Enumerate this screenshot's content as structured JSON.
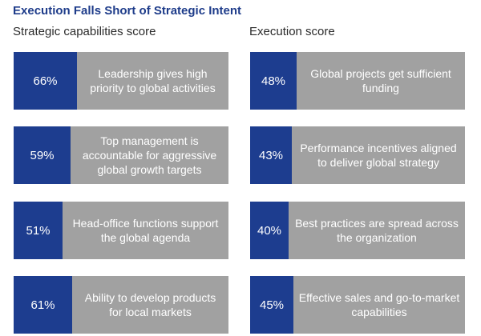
{
  "title": "Execution Falls Short of Strategic Intent",
  "colors": {
    "score": "#1d3d8f",
    "bar": "#a1a1a1",
    "title": "#1e3c8a"
  },
  "chart_data": [
    {
      "type": "bar",
      "title": "Strategic capabilities score",
      "categories": [
        "Leadership gives high priority to global activities",
        "Top management is accountable for aggressive global growth targets",
        "Head-office functions support the global agenda",
        "Ability to develop products for local markets"
      ],
      "values": [
        66,
        59,
        51,
        61
      ],
      "value_labels": [
        "66%",
        "59%",
        "51%",
        "61%"
      ],
      "ylim": [
        0,
        100
      ]
    },
    {
      "type": "bar",
      "title": "Execution score",
      "categories": [
        "Global projects get sufficient funding",
        "Performance incentives aligned to deliver global strategy",
        "Best practices are spread across the organization",
        "Effective sales and go-to-market capabilities"
      ],
      "values": [
        48,
        43,
        40,
        45
      ],
      "value_labels": [
        "48%",
        "43%",
        "40%",
        "45%"
      ],
      "ylim": [
        0,
        100
      ]
    }
  ]
}
